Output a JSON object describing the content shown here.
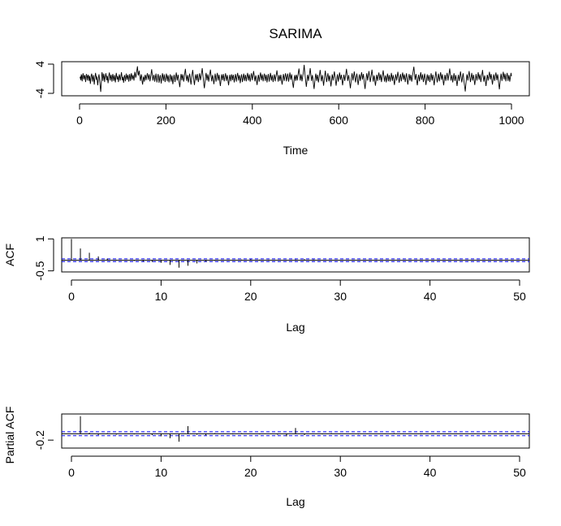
{
  "title": "SARIMA",
  "chart_data": [
    {
      "id": "series",
      "type": "line",
      "xlabel": "Time",
      "ylabel": "",
      "xlim": [
        0,
        1000
      ],
      "ylim": [
        -4,
        4
      ],
      "xticks": [
        0,
        200,
        400,
        600,
        800,
        1000
      ],
      "yticks": [
        -4,
        4
      ],
      "n_points": 1000,
      "line_color": "#000000",
      "values": [
        0.1,
        0.6,
        -0.4,
        1.2,
        0.8,
        -0.7,
        0.3,
        1.5,
        0.9,
        -0.2,
        0.4,
        1.0,
        0.2,
        -0.9,
        0.5,
        1.3,
        0.7,
        -0.5,
        0.6,
        1.1,
        0.3,
        -0.6,
        0.8,
        0.2,
        -1.4,
        -0.3,
        0.9,
        1.4,
        0.5,
        -0.8,
        0.2,
        1.0,
        -0.1,
        -1.6,
        -0.4,
        0.7,
        1.6,
        0.8,
        -0.3,
        0.6,
        -0.5,
        -1.8,
        -0.6,
        0.5,
        1.2,
        0.1,
        -1.1,
        -2.4,
        -3.6,
        -1.9,
        0.4,
        1.8,
        1.1,
        -0.6,
        0.3,
        1.4,
        0.5,
        -0.9,
        0.2,
        0.9,
        1.5,
        0.6,
        -0.4,
        0.8,
        0.1,
        -1.2,
        -0.2,
        1.0,
        1.7,
        0.7,
        -0.5,
        0.4,
        1.1,
        0.2,
        -0.8,
        0.6,
        1.3,
        0.4,
        -0.6,
        0.3,
        1.0,
        -0.3,
        -1.0,
        0.5,
        1.6,
        0.9,
        -0.2,
        0.7,
        0.2,
        -0.9,
        0.4,
        1.2,
        0.6,
        -0.5,
        0.1,
        0.9,
        1.8,
        0.8,
        -0.4,
        0.5,
        -0.2,
        -1.1,
        0.3,
        1.0,
        0.4,
        -0.7,
        0.2,
        1.4,
        0.7,
        -0.3,
        0.6,
        1.1,
        0.1,
        -0.8,
        0.5,
        1.3,
        0.4,
        -0.6,
        0.7,
        1.5,
        0.8,
        -0.2,
        0.4,
        1.0,
        0.3,
        -0.5,
        0.9,
        1.9,
        1.2,
        0.3,
        0.8,
        1.6,
        2.6,
        3.4,
        2.0,
        0.9,
        1.5,
        2.2,
        1.1,
        0.2,
        -0.6,
        0.4,
        1.2,
        0.5,
        -0.9,
        -1.6,
        -0.5,
        0.6,
        0.2,
        -0.8,
        0.3,
        1.1,
        0.6,
        -0.4,
        0.2,
        0.9,
        1.5,
        0.7,
        -0.3,
        0.5,
        1.2,
        0.4,
        -0.7,
        0.1,
        0.9,
        1.8,
        2.6,
        1.4,
        0.3,
        -0.5,
        0.4,
        1.1,
        0.5,
        -0.8,
        -0.1,
        0.8,
        1.4,
        0.3,
        -1.0,
        -0.2,
        0.7,
        1.3,
        0.2,
        -1.1,
        -0.4,
        0.6,
        1.0,
        -0.1,
        -1.3,
        -0.3,
        0.8,
        1.5,
        0.6,
        -0.6,
        0.3,
        1.2,
        0.4,
        -0.9,
        -0.1,
        0.7,
        1.4,
        0.5,
        -0.7,
        0.4,
        1.0,
        0.1,
        -1.0,
        -0.3,
        0.6,
        1.2,
        0.3,
        -0.8,
        0.2,
        0.9,
        -0.4,
        -1.5,
        -0.6,
        0.5,
        1.1,
        0.2,
        -0.9,
        0.1,
        1.0,
        1.7,
        0.6,
        -0.5,
        0.3,
        1.1,
        0.4,
        -0.7,
        -1.4,
        -2.3,
        -1.2,
        0.2,
        1.3,
        0.8,
        -0.4,
        0.5,
        1.2,
        0.3,
        -0.8,
        -0.1,
        0.9,
        1.9,
        2.7,
        1.5,
        0.4,
        -0.6,
        0.3,
        1.0,
        0.2,
        -1.0,
        -0.3,
        0.8,
        1.4,
        0.5,
        -0.7,
        -1.6,
        -0.4,
        0.7,
        1.6,
        2.4,
        1.3,
        0.2,
        -0.8,
        -1.7,
        -0.6,
        0.5,
        1.2,
        0.4,
        -0.5,
        0.6,
        1.3,
        0.3,
        -0.9,
        -0.2,
        0.8,
        1.5,
        0.6,
        -0.4,
        0.3,
        1.1,
        2.0,
        2.9,
        1.7,
        0.5,
        -0.6,
        -1.8,
        -2.6,
        -1.4,
        -0.2,
        0.9,
        1.6,
        0.7,
        -0.5,
        0.4,
        1.2,
        0.3,
        -0.8,
        0.1,
        0.9,
        1.7,
        2.5,
        1.4,
        0.3,
        -0.7,
        0.2,
        1.0,
        0.4,
        -0.6,
        -1.5,
        -0.5,
        0.6,
        1.4,
        0.5,
        -0.8,
        -0.1,
        0.9,
        1.6,
        0.6,
        -0.5,
        0.3,
        1.1,
        0.2,
        -1.1,
        -2.0,
        -1.0,
        0.3,
        1.2,
        0.6,
        -0.4,
        0.5,
        1.3,
        0.4,
        -0.7,
        0.1,
        0.8,
        1.5,
        0.5,
        -0.6,
        0.2,
        1.0,
        0.3,
        -0.9,
        -1.8,
        -0.8,
        0.4,
        1.1,
        0.2,
        -0.7,
        0.3,
        1.2,
        0.7,
        -0.4,
        0.4,
        1.1,
        0.2,
        -1.0,
        -0.3,
        0.6,
        1.3,
        0.4,
        -0.8,
        0.2,
        0.9,
        1.6,
        0.7,
        -0.5,
        0.3,
        1.0,
        0.1,
        -1.2,
        -0.4,
        0.5,
        1.2,
        0.3,
        -0.9,
        -0.2,
        0.7,
        1.4,
        0.5,
        -0.6,
        0.3,
        1.1,
        0.4,
        -0.7,
        0.2,
        0.9,
        1.6,
        0.6,
        -0.5,
        0.4,
        1.2,
        0.3,
        -0.8,
        -0.1,
        0.8,
        1.5,
        0.6,
        -0.4,
        0.5,
        1.3,
        2.1,
        1.2,
        0.2,
        -0.7,
        0.1,
        0.9,
        0.3,
        -0.9,
        -1.7,
        -0.7,
        0.4,
        1.1,
        0.3,
        -0.8,
        0.2,
        1.0,
        1.7,
        0.7,
        -0.4,
        0.4,
        1.2,
        0.4,
        -0.7,
        0.0,
        0.8,
        1.4,
        0.5,
        -0.6,
        0.3,
        1.1,
        0.2,
        -1.0,
        -0.3,
        0.7,
        1.3,
        0.4,
        -0.8,
        0.1,
        0.9,
        1.6,
        0.6,
        -0.5,
        0.2,
        1.0,
        0.3,
        -0.9,
        -0.2,
        0.6,
        1.2,
        0.3,
        -0.7,
        0.2,
        0.9,
        1.5,
        2.3,
        1.2,
        0.1,
        -0.8,
        0.2,
        1.0,
        0.4,
        -0.6,
        0.3,
        1.1,
        0.2,
        -0.9,
        -1.6,
        -0.6,
        0.5,
        1.3,
        0.5,
        -0.6,
        0.2,
        0.9,
        1.5,
        0.5,
        -0.7,
        0.0,
        0.8,
        1.4,
        0.4,
        -0.8,
        0.1,
        0.9,
        1.7,
        0.8,
        -0.3,
        0.5,
        1.2,
        0.3,
        -0.9,
        -1.7,
        -2.5,
        -1.3,
        0.0,
        1.0,
        0.4,
        -0.6,
        0.3,
        1.1,
        0.5,
        -0.5,
        0.4,
        1.2,
        2.0,
        2.8,
        1.6,
        0.5,
        -0.5,
        0.4,
        1.2,
        0.4,
        -0.7,
        0.1,
        0.9,
        1.6,
        2.6,
        3.8,
        2.4,
        1.1,
        0.0,
        -1.1,
        -2.2,
        -1.2,
        0.1,
        1.1,
        0.5,
        -0.6,
        0.3,
        1.0,
        1.9,
        2.9,
        1.7,
        0.5,
        -0.6,
        0.2,
        1.0,
        0.3,
        -0.8,
        -1.9,
        -2.8,
        -1.6,
        -0.4,
        0.7,
        1.4,
        0.5,
        -0.6,
        0.3,
        1.1,
        0.2,
        -1.0,
        -0.3,
        0.7,
        1.5,
        2.4,
        1.3,
        0.2,
        -0.7,
        0.2,
        1.0,
        0.3,
        -0.9,
        -1.9,
        -0.8,
        0.4,
        1.3,
        2.2,
        1.1,
        0.0,
        -0.9,
        -0.1,
        0.8,
        1.5,
        0.5,
        -0.7,
        0.1,
        0.9,
        0.2,
        -1.0,
        -2.1,
        -1.1,
        0.2,
        1.2,
        0.5,
        -0.5,
        0.4,
        1.2,
        2.0,
        1.0,
        -0.1,
        -1.0,
        -1.9,
        -0.8,
        0.4,
        1.2,
        0.3,
        -0.8,
        0.1,
        0.9,
        1.7,
        0.8,
        -0.3,
        0.4,
        1.1,
        0.2,
        -0.9,
        -1.8,
        -0.8,
        0.3,
        1.1,
        0.4,
        -0.6,
        0.2,
        1.0,
        1.8,
        2.7,
        1.6,
        0.4,
        -0.6,
        0.2,
        1.0,
        0.3,
        -0.8,
        -1.6,
        -2.6,
        -1.5,
        -0.2,
        0.8,
        1.5,
        0.6,
        -0.5,
        0.3,
        1.1,
        2.0,
        1.0,
        -0.1,
        -1.0,
        -0.2,
        0.7,
        1.4,
        0.4,
        -0.8,
        -1.7,
        -0.7,
        0.4,
        1.2,
        0.4,
        -0.6,
        0.3,
        1.0,
        1.8,
        0.9,
        -0.2,
        0.5,
        1.3,
        0.4,
        -0.8,
        -1.9,
        -2.8,
        -1.6,
        -0.4,
        0.7,
        1.5,
        0.6,
        -0.5,
        0.4,
        1.2,
        2.1,
        1.1,
        0.0,
        -0.9,
        -0.1,
        0.8,
        1.6,
        2.5,
        1.4,
        0.2,
        -0.8,
        0.1,
        0.9,
        0.2,
        -1.0,
        -1.9,
        -1.0,
        0.2,
        1.1,
        0.4,
        -0.6,
        0.3,
        1.0,
        1.7,
        0.7,
        -0.4,
        0.4,
        1.2,
        0.3,
        -0.9,
        -0.1,
        0.8,
        1.5,
        2.3,
        1.2,
        0.1,
        -0.8,
        0.1,
        0.9,
        0.2,
        -1.0,
        -0.2,
        0.7,
        1.4,
        0.5,
        -0.7,
        0.2,
        1.0,
        0.3,
        -0.8,
        0.0,
        0.8,
        1.6,
        0.6,
        -0.6,
        0.2,
        1.0,
        0.3,
        -0.9,
        -1.7,
        -0.7,
        0.4,
        1.2,
        0.5,
        -0.5,
        0.3,
        1.1,
        1.9,
        0.9,
        -0.2,
        -1.1,
        -0.3,
        0.6,
        1.3,
        0.4,
        -0.7,
        0.2,
        1.0,
        1.7,
        0.8,
        -0.3,
        0.5,
        1.2,
        0.3,
        -0.9,
        -0.1,
        0.8,
        1.5,
        0.5,
        -0.7,
        -1.6,
        -0.6,
        0.5,
        1.3,
        0.5,
        -0.5,
        0.4,
        1.1,
        0.3,
        -0.8,
        0.0,
        0.9,
        1.7,
        2.6,
        3.3,
        2.0,
        0.8,
        -0.3,
        0.6,
        1.3,
        0.3,
        -0.9,
        -1.8,
        -0.8,
        0.4,
        1.1,
        0.3,
        -0.7,
        0.2,
        1.0,
        1.8,
        0.8,
        -0.3,
        0.5,
        1.2,
        0.3,
        -0.9,
        -0.2,
        0.7,
        1.4,
        0.4,
        -0.8,
        -1.7,
        -0.7,
        0.4,
        1.2,
        0.4,
        -0.6,
        0.3,
        1.0,
        0.2,
        -0.9,
        -0.1,
        0.8,
        1.5,
        0.6,
        -0.5,
        0.3,
        1.1,
        0.3,
        -0.8,
        -1.8,
        -0.7,
        0.4,
        1.2,
        2.0,
        1.0,
        -0.1,
        -1.0,
        -0.2,
        0.7,
        1.4,
        0.4,
        -0.7,
        0.2,
        1.0,
        1.8,
        0.8,
        -0.3,
        0.4,
        1.2,
        0.3,
        -0.9,
        -1.8,
        -0.8,
        0.3,
        1.1,
        0.4,
        -0.6,
        0.2,
        0.9,
        1.6,
        0.6,
        -0.5,
        0.3,
        1.1,
        1.9,
        2.8,
        1.7,
        0.5,
        -0.5,
        0.3,
        1.0,
        0.2,
        -1.0,
        -0.2,
        0.7,
        1.5,
        0.5,
        -0.6,
        0.2,
        1.0,
        0.2,
        -1.0,
        -2.0,
        -1.0,
        0.2,
        1.1,
        0.4,
        -0.6,
        0.3,
        1.1,
        2.0,
        1.0,
        -0.1,
        -1.0,
        -0.2,
        0.8,
        1.5,
        0.5,
        -0.7,
        -1.6,
        -2.5,
        -3.5,
        -2.1,
        -0.8,
        0.4,
        1.2,
        0.5,
        -0.5,
        0.4,
        1.2,
        2.1,
        1.1,
        0.0,
        -0.9,
        -0.1,
        0.8,
        1.6,
        0.6,
        -0.5,
        0.3,
        1.1,
        0.3,
        -0.8,
        -1.7,
        -0.7,
        0.4,
        1.3,
        0.5,
        -0.5,
        0.3,
        1.0,
        1.8,
        0.8,
        -0.3,
        0.5,
        1.2,
        0.3,
        -0.9,
        -0.1,
        0.8,
        1.5,
        2.4,
        1.3,
        0.2,
        -0.8,
        0.1,
        0.9,
        0.2,
        -1.0,
        -2.0,
        -1.0,
        0.2,
        1.1,
        0.5,
        -0.5,
        0.3,
        1.1,
        1.9,
        0.9,
        -0.2,
        0.6,
        1.3,
        0.4,
        -0.8,
        -1.6,
        -0.6,
        0.5,
        1.2,
        0.4,
        -0.6,
        0.2,
        1.0,
        1.7,
        0.7,
        -0.4,
        0.4,
        1.2,
        0.3,
        -0.9,
        -1.9,
        -2.9,
        -1.7,
        -0.5,
        0.6,
        1.4,
        0.5,
        -0.6,
        0.3,
        1.1,
        1.9,
        0.9,
        -0.2,
        0.6,
        1.4,
        0.5,
        -0.7,
        0.1,
        0.9,
        1.6,
        0.6,
        -0.6,
        0.2,
        1.0,
        0.3,
        -0.8,
        0.0,
        0.9,
        1.6,
        0.7
      ]
    },
    {
      "id": "acf",
      "type": "bar",
      "ylabel": "ACF",
      "xlabel": "Lag",
      "xlim": [
        0,
        50
      ],
      "ylim": [
        -0.55,
        1.05
      ],
      "xticks": [
        0,
        10,
        20,
        30,
        40,
        50
      ],
      "yticks": [
        -0.5,
        1.0
      ],
      "ci": 0.062,
      "ci_color": "#0000ff",
      "lags": [
        0,
        1,
        2,
        3,
        4,
        5,
        6,
        7,
        8,
        9,
        10,
        11,
        12,
        13,
        14,
        15,
        16,
        17,
        18,
        19,
        20,
        21,
        22,
        23,
        24,
        25,
        26,
        27,
        28,
        29,
        30,
        31,
        32,
        33,
        34,
        35,
        36,
        37,
        38,
        39,
        40,
        41,
        42,
        43,
        44,
        45,
        46,
        47,
        48,
        49,
        50
      ],
      "values": [
        1.0,
        0.55,
        0.35,
        0.18,
        0.08,
        0.02,
        -0.02,
        -0.04,
        -0.06,
        -0.08,
        -0.12,
        -0.22,
        -0.35,
        -0.26,
        -0.15,
        -0.07,
        -0.03,
        -0.01,
        0.01,
        0.03,
        0.04,
        0.03,
        0.02,
        0.0,
        -0.02,
        0.03,
        0.05,
        0.03,
        0.01,
        -0.01,
        -0.02,
        -0.01,
        0.0,
        0.01,
        0.02,
        0.01,
        0.0,
        -0.01,
        -0.02,
        -0.01,
        0.0,
        0.01,
        0.01,
        0.0,
        -0.01,
        -0.01,
        0.0,
        0.01,
        0.0,
        -0.01,
        0.0
      ]
    },
    {
      "id": "pacf",
      "type": "bar",
      "ylabel": "Partial ACF",
      "xlabel": "Lag",
      "xlim": [
        0,
        50
      ],
      "ylim": [
        -0.45,
        0.62
      ],
      "xticks": [
        0,
        10,
        20,
        30,
        40,
        50
      ],
      "yticks": [
        -0.2
      ],
      "ci": 0.062,
      "ci_color": "#0000ff",
      "lags": [
        1,
        2,
        3,
        4,
        5,
        6,
        7,
        8,
        9,
        10,
        11,
        12,
        13,
        14,
        15,
        16,
        17,
        18,
        19,
        20,
        21,
        22,
        23,
        24,
        25,
        26,
        27,
        28,
        29,
        30,
        31,
        32,
        33,
        34,
        35,
        36,
        37,
        38,
        39,
        40,
        41,
        42,
        43,
        44,
        45,
        46,
        47,
        48,
        49,
        50
      ],
      "values": [
        0.55,
        0.03,
        -0.04,
        0.02,
        -0.03,
        0.01,
        -0.02,
        0.01,
        -0.04,
        -0.08,
        -0.14,
        -0.25,
        0.24,
        -0.03,
        -0.05,
        0.02,
        0.01,
        -0.02,
        0.02,
        0.01,
        -0.02,
        0.01,
        -0.03,
        -0.08,
        0.18,
        -0.04,
        0.01,
        -0.02,
        0.02,
        -0.01,
        0.01,
        -0.02,
        0.01,
        0.0,
        -0.01,
        0.02,
        -0.01,
        0.01,
        -0.02,
        0.0,
        0.01,
        -0.01,
        0.01,
        0.0,
        -0.01,
        0.01,
        0.0,
        -0.01,
        0.01,
        0.0
      ]
    }
  ]
}
